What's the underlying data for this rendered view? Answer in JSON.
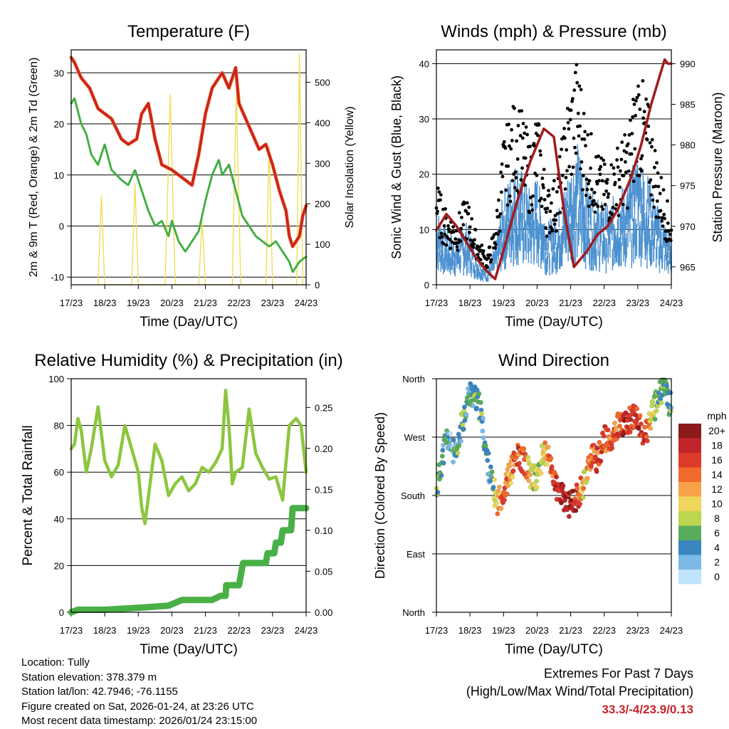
{
  "chart_data": [
    {
      "type": "line",
      "title": "Temperature (F)",
      "xlabel": "Time (Day/UTC)",
      "ylabel_left": "2m & 9m T (Red, Orange) & 2m Td (Green)",
      "ylabel_right": "Solar Insolation (Yellow)",
      "x_ticks": [
        "17/23",
        "18/23",
        "19/23",
        "20/23",
        "21/23",
        "22/23",
        "23/23",
        "24/23"
      ],
      "ylim_left": [
        -11.5,
        34.5
      ],
      "ylim_right": [
        0,
        580
      ],
      "yticks_left": [
        "-10",
        "0",
        "10",
        "20",
        "30"
      ],
      "yticks_right": [
        "0",
        "100",
        "200",
        "300",
        "400",
        "500"
      ],
      "colors": {
        "temp": "#cc2222",
        "dewpoint": "#3fae3f",
        "solar": "#f2dc55"
      },
      "series": [
        {
          "name": "2m T",
          "x": [
            0,
            0.1,
            0.3,
            0.55,
            0.8,
            1.0,
            1.2,
            1.5,
            1.7,
            1.95,
            2.1,
            2.3,
            2.5,
            2.7,
            3.0,
            3.2,
            3.4,
            3.6,
            3.8,
            4.0,
            4.2,
            4.5,
            4.7,
            4.9,
            5.0,
            5.2,
            5.4,
            5.6,
            5.8,
            6.0,
            6.2,
            6.4,
            6.5,
            6.6,
            6.8,
            6.9,
            7.0
          ],
          "values": [
            33,
            32,
            29,
            27,
            23,
            22,
            21,
            17,
            16,
            17,
            22,
            24,
            17,
            12,
            11,
            10,
            9,
            8,
            14,
            22,
            27,
            30,
            27,
            31,
            24,
            21,
            18,
            15,
            16,
            12,
            7,
            3,
            -2,
            -4,
            -2,
            2,
            4
          ]
        },
        {
          "name": "2m Td",
          "x": [
            0,
            0.1,
            0.3,
            0.45,
            0.6,
            0.8,
            1.0,
            1.2,
            1.5,
            1.7,
            1.9,
            2.1,
            2.3,
            2.5,
            2.7,
            2.9,
            3.0,
            3.2,
            3.4,
            3.6,
            3.8,
            4.0,
            4.2,
            4.4,
            4.5,
            4.7,
            4.9,
            5.1,
            5.3,
            5.5,
            5.7,
            5.9,
            6.1,
            6.3,
            6.5,
            6.6,
            6.8,
            7.0
          ],
          "values": [
            24,
            25,
            20,
            18,
            14,
            12,
            16,
            11,
            9,
            8,
            11,
            7,
            3,
            0,
            1,
            -2,
            1,
            -3,
            -5,
            -3,
            -1,
            5,
            10,
            13,
            10,
            12,
            7,
            2,
            0,
            -2,
            -3,
            -4,
            -3,
            -5,
            -7,
            -9,
            -7,
            -6
          ]
        },
        {
          "name": "Solar Insolation",
          "x": [
            0.8,
            0.9,
            1.0,
            1.8,
            1.9,
            2.0,
            2.8,
            2.95,
            3.1,
            3.8,
            3.9,
            4.0,
            4.8,
            4.92,
            5.05,
            5.8,
            5.9,
            6.0,
            6.72,
            6.8,
            6.9
          ],
          "values": [
            0,
            220,
            0,
            0,
            250,
            0,
            0,
            470,
            0,
            0,
            160,
            0,
            0,
            480,
            0,
            0,
            340,
            0,
            0,
            570,
            0
          ]
        }
      ]
    },
    {
      "type": "scatter",
      "title": "Winds (mph) & Pressure (mb)",
      "xlabel": "Time (Day/UTC)",
      "ylabel_left": "Sonic Wind & Gust (Blue, Black)",
      "ylabel_right": "Station Pressure (Maroon)",
      "x_ticks": [
        "17/23",
        "18/23",
        "19/23",
        "20/23",
        "21/23",
        "22/23",
        "23/23",
        "24/23"
      ],
      "ylim_left": [
        0,
        42.5
      ],
      "ylim_right": [
        962.8,
        991.7
      ],
      "yticks_left": [
        "0",
        "10",
        "20",
        "30",
        "40"
      ],
      "yticks_right": [
        "965",
        "970",
        "975",
        "980",
        "985",
        "990"
      ],
      "colors": {
        "wind": "#4a90d0",
        "gust": "#000000",
        "pressure": "#a01c1c"
      },
      "series": [
        {
          "name": "Station Pressure",
          "x": [
            0,
            0.3,
            0.6,
            0.9,
            1.2,
            1.5,
            1.75,
            2.0,
            2.4,
            2.8,
            3.2,
            3.5,
            3.8,
            4.1,
            4.3,
            4.5,
            4.8,
            5.1,
            5.4,
            5.8,
            6.1,
            6.4,
            6.8,
            6.9,
            7.0
          ],
          "values": [
            969.5,
            971.5,
            970,
            968,
            966,
            964.5,
            963.5,
            967,
            973,
            978,
            982,
            981,
            972,
            965,
            966,
            967,
            969,
            970,
            972,
            976,
            980,
            985,
            990.5,
            990,
            990
          ]
        },
        {
          "name": "Sonic Wind",
          "x": [
            0,
            0.3,
            0.6,
            0.9,
            1.2,
            1.5,
            1.75,
            2.0,
            2.4,
            2.8,
            3.0,
            3.3,
            3.6,
            3.9,
            4.2,
            4.5,
            4.8,
            5.1,
            5.4,
            5.7,
            6.0,
            6.3,
            6.6,
            6.8,
            7.0
          ],
          "values": [
            10,
            7,
            6,
            8,
            4,
            2,
            5,
            12,
            16,
            12,
            14,
            8,
            9,
            14,
            18,
            13,
            11,
            10,
            12,
            13,
            17,
            14,
            10,
            8,
            6
          ]
        },
        {
          "name": "Gust",
          "x": [
            0,
            0.3,
            0.6,
            0.9,
            1.2,
            1.5,
            1.75,
            2.0,
            2.4,
            2.8,
            3.0,
            3.3,
            3.6,
            3.9,
            4.2,
            4.5,
            4.8,
            5.1,
            5.4,
            5.7,
            6.0,
            6.3,
            6.6,
            6.8,
            7.0
          ],
          "values": [
            14,
            10,
            9,
            12,
            7,
            4,
            8,
            20,
            26,
            19,
            24,
            13,
            15,
            25,
            31,
            22,
            18,
            16,
            19,
            21,
            30,
            25,
            17,
            13,
            9
          ]
        }
      ]
    },
    {
      "type": "line",
      "title": "Relative Humidity (%) & Precipitation (in)",
      "xlabel": "Time (Day/UTC)",
      "ylabel_left": "Percent & Total Rainfall",
      "x_ticks": [
        "17/23",
        "18/23",
        "19/23",
        "20/23",
        "21/23",
        "22/23",
        "23/23",
        "24/23"
      ],
      "ylim_left": [
        0,
        100
      ],
      "ylim_right": [
        0,
        0.285
      ],
      "yticks_left": [
        "0",
        "20",
        "40",
        "60",
        "80",
        "100"
      ],
      "yticks_right": [
        "0.00",
        "0.05",
        "0.10",
        "0.15",
        "0.20",
        "0.25"
      ],
      "colors": {
        "rh": "#8cc63f",
        "precip": "#49b047"
      },
      "series": [
        {
          "name": "Relative Humidity",
          "x": [
            0,
            0.1,
            0.2,
            0.3,
            0.45,
            0.6,
            0.8,
            1.0,
            1.2,
            1.4,
            1.6,
            1.8,
            2.0,
            2.1,
            2.2,
            2.35,
            2.5,
            2.7,
            2.9,
            3.1,
            3.3,
            3.5,
            3.7,
            3.9,
            4.1,
            4.3,
            4.5,
            4.6,
            4.7,
            4.8,
            4.9,
            5.1,
            5.3,
            5.5,
            5.7,
            5.9,
            6.1,
            6.3,
            6.5,
            6.7,
            6.85,
            7.0
          ],
          "values": [
            70,
            72,
            83,
            78,
            60,
            70,
            88,
            65,
            58,
            63,
            80,
            70,
            60,
            45,
            38,
            55,
            72,
            65,
            50,
            55,
            58,
            52,
            55,
            62,
            60,
            64,
            70,
            95,
            80,
            55,
            60,
            62,
            87,
            68,
            62,
            57,
            58,
            48,
            80,
            83,
            80,
            60
          ]
        },
        {
          "name": "Total Precipitation",
          "x": [
            0,
            0.2,
            1.0,
            2.2,
            2.9,
            3.3,
            3.7,
            4.2,
            4.45,
            4.6,
            4.62,
            5.0,
            5.12,
            5.8,
            5.85,
            6.05,
            6.1,
            6.25,
            6.3,
            6.55,
            6.6,
            7.0
          ],
          "values": [
            0,
            0.003,
            0.003,
            0.006,
            0.008,
            0.015,
            0.015,
            0.015,
            0.02,
            0.02,
            0.033,
            0.033,
            0.06,
            0.06,
            0.072,
            0.072,
            0.085,
            0.085,
            0.1,
            0.1,
            0.127,
            0.127
          ]
        }
      ]
    },
    {
      "type": "scatter",
      "title": "Wind Direction",
      "xlabel": "Time (Day/UTC)",
      "ylabel_left": "Direction (Colored By Speed)",
      "x_ticks": [
        "17/23",
        "18/23",
        "19/23",
        "20/23",
        "21/23",
        "22/23",
        "23/23",
        "24/23"
      ],
      "y_categories": [
        "North",
        "East",
        "South",
        "West",
        "North"
      ],
      "ylim_left": [
        0,
        360
      ],
      "legend": {
        "title": "mph",
        "labels": [
          "20+",
          "18",
          "16",
          "14",
          "12",
          "10",
          "8",
          "6",
          "4",
          "2",
          "0"
        ],
        "position": "right"
      },
      "colors": {
        "scale": [
          "#8b1a1a",
          "#c0252a",
          "#dd3b2c",
          "#f06a2b",
          "#f8a24a",
          "#eed65a",
          "#bcd650",
          "#58ad5c",
          "#3a86c0",
          "#7cb9e6",
          "#bfe3f8"
        ]
      },
      "series": [
        {
          "name": "Direction",
          "x": [
            0,
            0.15,
            0.3,
            0.45,
            0.6,
            0.75,
            0.9,
            1.0,
            1.15,
            1.3,
            1.5,
            1.65,
            1.8,
            2.0,
            2.2,
            2.4,
            2.6,
            2.8,
            3.0,
            3.2,
            3.4,
            3.6,
            3.8,
            4.0,
            4.2,
            4.4,
            4.6,
            4.8,
            5.0,
            5.2,
            5.4,
            5.6,
            5.8,
            6.0,
            6.2,
            6.4,
            6.6,
            6.8,
            6.95
          ],
          "values": [
            185,
            230,
            270,
            255,
            235,
            290,
            320,
            340,
            330,
            315,
            240,
            200,
            170,
            185,
            215,
            240,
            235,
            210,
            205,
            250,
            230,
            185,
            175,
            165,
            178,
            200,
            240,
            235,
            270,
            255,
            290,
            285,
            300,
            295,
            270,
            300,
            330,
            350,
            320
          ],
          "speeds": [
            6,
            5,
            4,
            3,
            6,
            5,
            4,
            3,
            7,
            5,
            4,
            3,
            12,
            15,
            12,
            16,
            14,
            10,
            8,
            10,
            13,
            18,
            19,
            18,
            17,
            10,
            13,
            16,
            15,
            14,
            15,
            18,
            16,
            17,
            16,
            10,
            7,
            6,
            5
          ]
        }
      ]
    }
  ],
  "info": {
    "location": "Location: Tully",
    "elevation": "Station elevation: 378.379 m",
    "latlon": "Station lat/lon: 42.7946; -76.1155",
    "created": "Figure created on Sat, 2026-01-24, at 23:26 UTC",
    "recent": "Most recent data timestamp: 2026/01/24 23:15:00"
  },
  "extremes": {
    "title": "Extremes For Past 7 Days",
    "subtitle": "(High/Low/Max Wind/Total Precipitation)",
    "values": "33.3/-4/23.9/0.13"
  }
}
